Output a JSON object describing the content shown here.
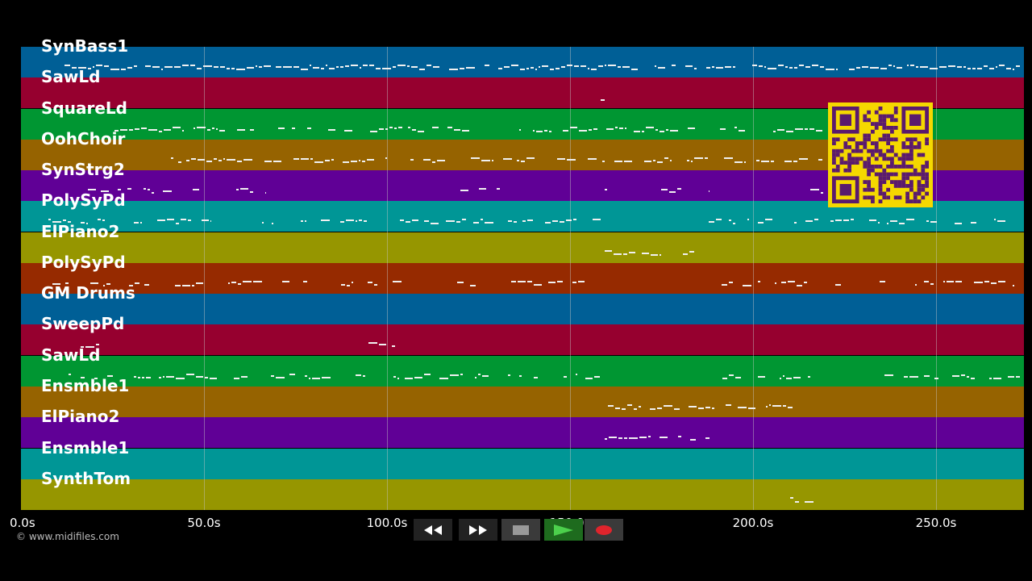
{
  "tracks": [
    {
      "label": "SynBass1",
      "color": "#005f96"
    },
    {
      "label": "SawLd",
      "color": "#96002f"
    },
    {
      "label": "SquareLd",
      "color": "#009632"
    },
    {
      "label": "OohChoir",
      "color": "#966300"
    },
    {
      "label": "SynStrg2",
      "color": "#600096"
    },
    {
      "label": "PolySyPd",
      "color": "#009696"
    },
    {
      "label": "ElPiano2",
      "color": "#969600"
    },
    {
      "label": "PolySyPd",
      "color": "#962a00"
    },
    {
      "label": "GM Drums",
      "color": "#005f96"
    },
    {
      "label": "SweepPd",
      "color": "#96002f"
    },
    {
      "label": "SawLd",
      "color": "#009632"
    },
    {
      "label": "Ensmble1",
      "color": "#966300"
    },
    {
      "label": "ElPiano2",
      "color": "#600096"
    },
    {
      "label": "Ensmble1",
      "color": "#009696"
    },
    {
      "label": "SynthTom",
      "color": "#969600"
    }
  ],
  "timeline": {
    "ticks": [
      "0.0s",
      "50.0s",
      "100.0s",
      "150.0s",
      "200.0s",
      "250.0s"
    ]
  },
  "copyright": "© www.midifiles.com",
  "transport": {
    "rewind_icon": "rewind-icon",
    "forward_icon": "fast-forward-icon",
    "stop_icon": "stop-icon",
    "play_icon": "play-icon",
    "record_icon": "record-icon"
  },
  "colors": {
    "background": "#000000",
    "note": "#f0f0f0",
    "qr_bg": "#f5d800",
    "qr_fg": "#5a1a6e"
  }
}
